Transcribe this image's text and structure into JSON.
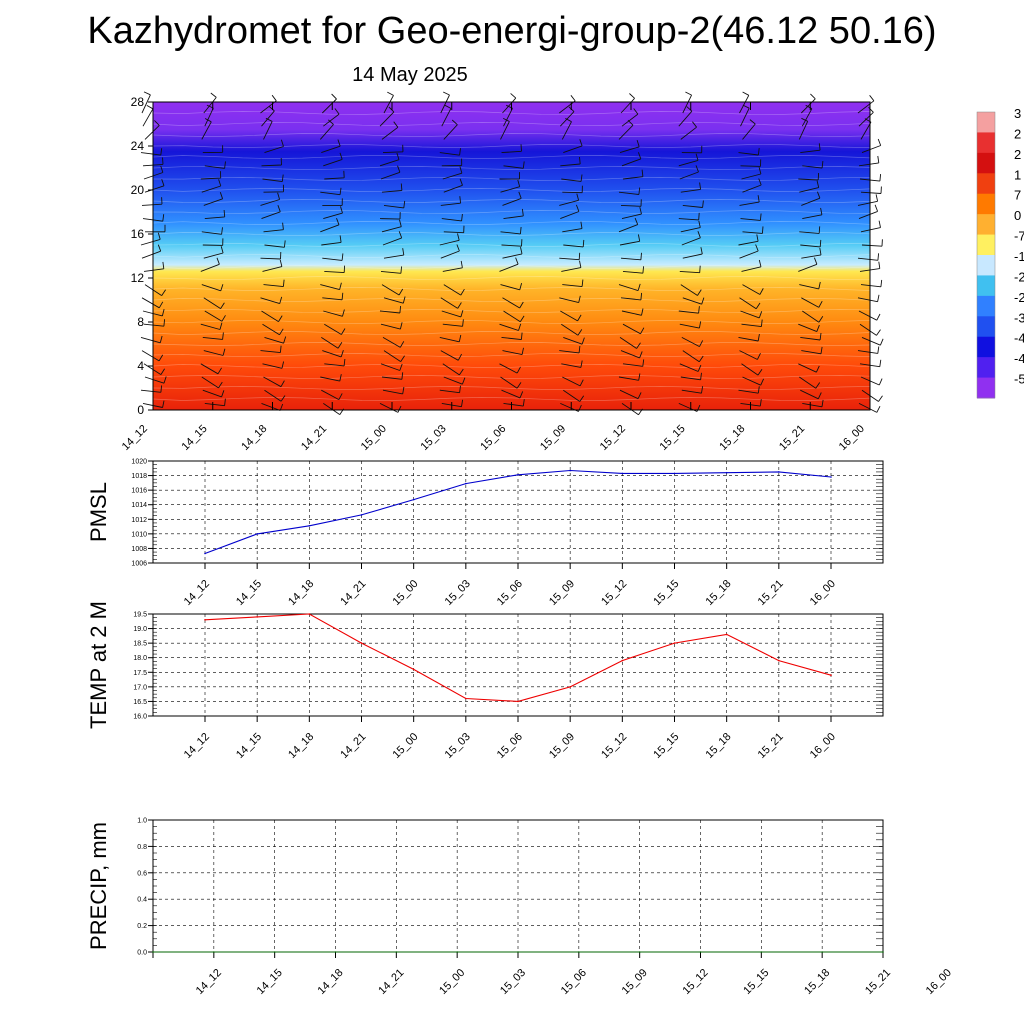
{
  "header": {
    "title": "Kazhydromet for Geo-energi-group-2(46.12 50.16)",
    "date": "14 May 2025"
  },
  "chart_data": [
    {
      "type": "heatmap",
      "title": "",
      "x": [
        "14_12",
        "14_15",
        "14_18",
        "14_21",
        "15_00",
        "15_03",
        "15_06",
        "15_09",
        "15_12",
        "15_15",
        "15_18",
        "15_21",
        "16_00"
      ],
      "y_ticks": [
        0,
        4,
        8,
        12,
        16,
        20,
        24,
        28
      ],
      "ylim": [
        0,
        28
      ],
      "colorbar_labels": [
        "3",
        "2",
        "2",
        "1",
        "7",
        "0",
        "-7",
        "-1",
        "-2",
        "-2",
        "-3",
        "-4",
        "-4",
        "-5"
      ],
      "colorbar_colors": [
        "#f4a0a0",
        "#e83030",
        "#d41010",
        "#f04010",
        "#ff7a00",
        "#ffb030",
        "#fff060",
        "#c8e8ff",
        "#40c0f0",
        "#3080ff",
        "#2050f0",
        "#1010e0",
        "#5020f0",
        "#9030f0"
      ],
      "layer_colors": [
        {
          "level": 0,
          "color": "#e8220a"
        },
        {
          "level": 4,
          "color": "#ff4a0a"
        },
        {
          "level": 8,
          "color": "#ff8a10"
        },
        {
          "level": 11,
          "color": "#ffb428"
        },
        {
          "level": 12.6,
          "color": "#ffe850"
        },
        {
          "level": 13.2,
          "color": "#c8ecff"
        },
        {
          "level": 15,
          "color": "#55ccf5"
        },
        {
          "level": 17,
          "color": "#3090ff"
        },
        {
          "level": 20,
          "color": "#2050ee"
        },
        {
          "level": 23.5,
          "color": "#1515d8"
        },
        {
          "level": 25.5,
          "color": "#7a30f0"
        },
        {
          "level": 28,
          "color": "#9030f0"
        }
      ]
    },
    {
      "type": "line",
      "ylabel": "PMSL",
      "x": [
        "14_12",
        "14_15",
        "14_18",
        "14_21",
        "15_00",
        "15_03",
        "15_06",
        "15_09",
        "15_12",
        "15_15",
        "15_18",
        "15_21",
        "16_00"
      ],
      "ylim": [
        1006,
        1020
      ],
      "y_ticks": [
        1006,
        1008,
        1010,
        1012,
        1014,
        1016,
        1018,
        1020
      ],
      "series": [
        {
          "values": [
            1007.3,
            1010.0,
            1011.1,
            1012.6,
            1014.7,
            1016.9,
            1018.1,
            1018.7,
            1018.3,
            1018.3,
            1018.4,
            1018.5,
            1017.8
          ],
          "color": "#0000cc"
        }
      ]
    },
    {
      "type": "line",
      "ylabel": "TEMP at 2 M",
      "x": [
        "14_12",
        "14_15",
        "14_18",
        "14_21",
        "15_00",
        "15_03",
        "15_06",
        "15_09",
        "15_12",
        "15_15",
        "15_18",
        "15_21",
        "16_00"
      ],
      "ylim": [
        16.0,
        19.5
      ],
      "y_ticks": [
        "16.0",
        "16.5",
        "17.0",
        "17.5",
        "18.0",
        "18.5",
        "19.0",
        "19.5"
      ],
      "series": [
        {
          "values": [
            19.3,
            19.4,
            19.5,
            18.5,
            17.6,
            16.6,
            16.5,
            17.0,
            17.9,
            18.5,
            18.8,
            17.9,
            17.4
          ],
          "color": "#ee0000"
        }
      ]
    },
    {
      "type": "line",
      "ylabel": "PRECIP, mm",
      "x": [
        "14_12",
        "14_15",
        "14_18",
        "14_21",
        "15_00",
        "15_03",
        "15_06",
        "15_09",
        "15_12",
        "15_15",
        "15_18",
        "15_21",
        "16_00"
      ],
      "ylim": [
        0.0,
        1.0
      ],
      "y_ticks": [
        "0.0",
        "0.2",
        "0.4",
        "0.6",
        "0.8",
        "1.0"
      ],
      "series": [
        {
          "values": [
            0,
            0,
            0,
            0,
            0,
            0,
            0,
            0,
            0,
            0,
            0,
            0,
            0
          ],
          "color": "#006600"
        }
      ]
    }
  ]
}
